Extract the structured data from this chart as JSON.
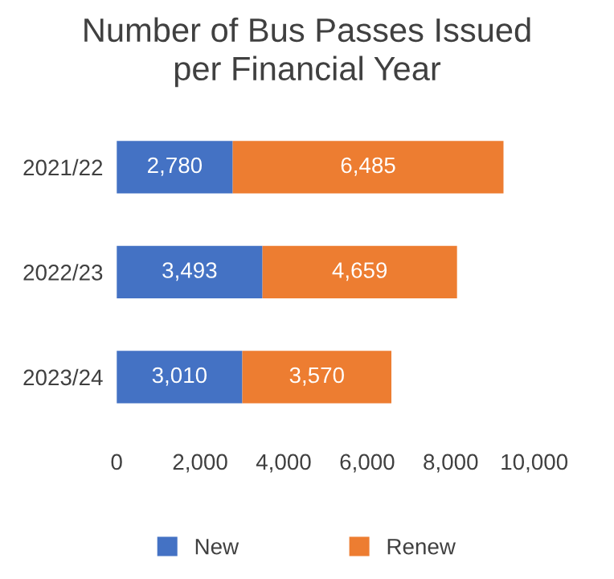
{
  "chart_data": {
    "type": "bar",
    "orientation": "horizontal",
    "stacked": true,
    "title": "Number of Bus Passes Issued\nper Financial Year",
    "categories": [
      "2021/22",
      "2022/23",
      "2023/24"
    ],
    "series": [
      {
        "name": "New",
        "color": "#4472c4",
        "values": [
          2780,
          3493,
          3010
        ],
        "value_labels": [
          "2,780",
          "3,493",
          "3,010"
        ]
      },
      {
        "name": "Renew",
        "color": "#ed7d31",
        "values": [
          6485,
          4659,
          3570
        ],
        "value_labels": [
          "6,485",
          "4,659",
          "3,570"
        ]
      }
    ],
    "xlim": [
      0,
      10000
    ],
    "xticks": [
      {
        "value": 0,
        "label": "0"
      },
      {
        "value": 2000,
        "label": "2,000"
      },
      {
        "value": 4000,
        "label": "4,000"
      },
      {
        "value": 6000,
        "label": "6,000"
      },
      {
        "value": 8000,
        "label": "8,000"
      },
      {
        "value": 10000,
        "label": "10,000"
      }
    ],
    "grid": false,
    "legend": "bottom"
  }
}
